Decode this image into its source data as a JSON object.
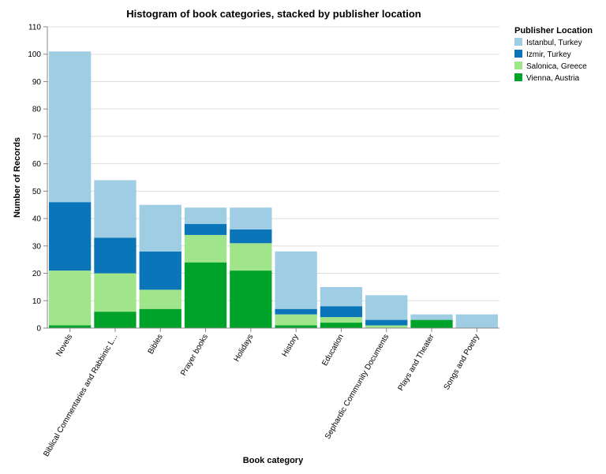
{
  "chart_data": {
    "type": "bar",
    "stacked": true,
    "title": "Histogram of book categories, stacked by publisher location",
    "xlabel": "Book category",
    "ylabel": "Number of Records",
    "ylim": [
      0,
      110
    ],
    "yticks": [
      0,
      10,
      20,
      30,
      40,
      50,
      60,
      70,
      80,
      90,
      100,
      110
    ],
    "grid": true,
    "legend_position": "right",
    "legend_title": "Publisher Location",
    "categories": [
      "Novels",
      "Biblical Commentaries and Rabbinic L...",
      "Bibles",
      "Prayer books",
      "Holidays",
      "History",
      "Education",
      "Sephardic Community Documents",
      "Plays and Theater",
      "Songs and Poetry"
    ],
    "series": [
      {
        "name": "Vienna, Austria",
        "color": "#00a32a",
        "values": [
          1,
          6,
          7,
          24,
          21,
          1,
          2,
          0,
          3,
          0
        ]
      },
      {
        "name": "Salonica, Greece",
        "color": "#a1e58a",
        "values": [
          20,
          14,
          7,
          10,
          10,
          4,
          2,
          1,
          0,
          0
        ]
      },
      {
        "name": "Izmir, Turkey",
        "color": "#0a75b8",
        "values": [
          25,
          13,
          14,
          4,
          5,
          2,
          4,
          2,
          0,
          0
        ]
      },
      {
        "name": "Istanbul, Turkey",
        "color": "#9fcde3",
        "values": [
          55,
          21,
          17,
          6,
          8,
          21,
          7,
          9,
          2,
          5
        ]
      }
    ],
    "legend_order": [
      "Istanbul, Turkey",
      "Izmir, Turkey",
      "Salonica, Greece",
      "Vienna, Austria"
    ]
  }
}
